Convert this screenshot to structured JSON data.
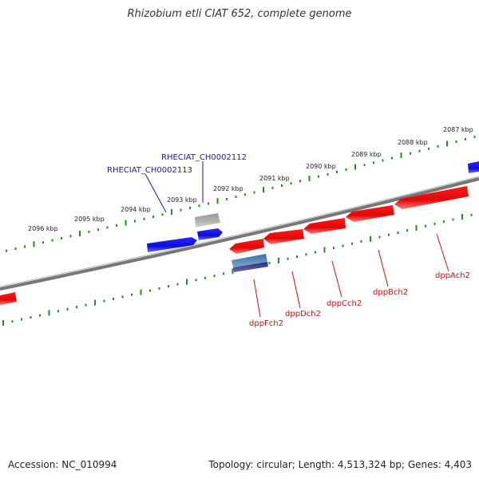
{
  "title": "Rhizobium etli CIAT 652, complete genome",
  "accession_text": "Accession: NC_010994",
  "topology_text": "Topology: circular; Length: 4,513,324 bp; Genes: 4,403",
  "colors": {
    "background": "#ffffff",
    "backbone": "#888888",
    "tick_green": "#2a8a2a",
    "gene_forward": "#1010e0",
    "gene_reverse": "#e01010",
    "gene_gray": "#a8a8a8",
    "label_blue": "#1a1aa6",
    "label_red": "#cc1111"
  },
  "kbp_labels": [
    "2087 kbp",
    "2088 kbp",
    "2089 kbp",
    "2090 kbp",
    "2091 kbp",
    "2092 kbp",
    "2093 kbp",
    "2094 kbp",
    "2095 kbp",
    "2096 kbp"
  ],
  "gene_labels": {
    "forward": [
      "RHECIAT_CH0002112",
      "RHECIAT_CH0002113"
    ],
    "reverse": [
      "dppAch2",
      "dppBch2",
      "dppCch2",
      "dppDch2",
      "dppFch2"
    ]
  }
}
